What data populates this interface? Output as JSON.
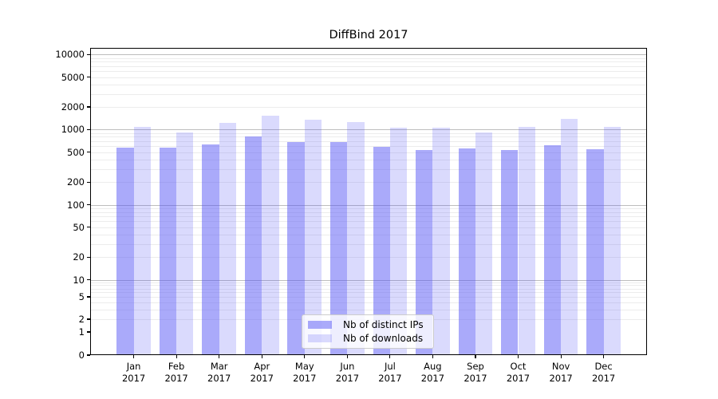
{
  "chart_data": {
    "type": "bar",
    "title": "DiffBind 2017",
    "months": [
      "Jan",
      "Feb",
      "Mar",
      "Apr",
      "May",
      "Jun",
      "Jul",
      "Aug",
      "Sep",
      "Oct",
      "Nov",
      "Dec"
    ],
    "year": "2017",
    "series": [
      {
        "name": "Nb of distinct IPs",
        "color": "rgba(85,85,245,0.5)",
        "values": [
          575,
          580,
          635,
          810,
          690,
          680,
          590,
          535,
          560,
          540,
          615,
          545
        ]
      },
      {
        "name": "Nb of downloads",
        "color": "rgba(85,85,245,0.22)",
        "values": [
          1075,
          920,
          1235,
          1530,
          1350,
          1260,
          1070,
          1060,
          920,
          1085,
          1390,
          1075
        ]
      }
    ],
    "yticks": [
      0,
      1,
      2,
      5,
      10,
      20,
      50,
      100,
      200,
      500,
      1000,
      2000,
      5000,
      10000
    ],
    "yscale": "symlog",
    "ylim": [
      0,
      12000
    ],
    "xlabel": "",
    "ylabel": "",
    "grid": true,
    "legend": {
      "position": "lower center",
      "labels": [
        "Nb of distinct IPs",
        "Nb of downloads"
      ]
    }
  }
}
